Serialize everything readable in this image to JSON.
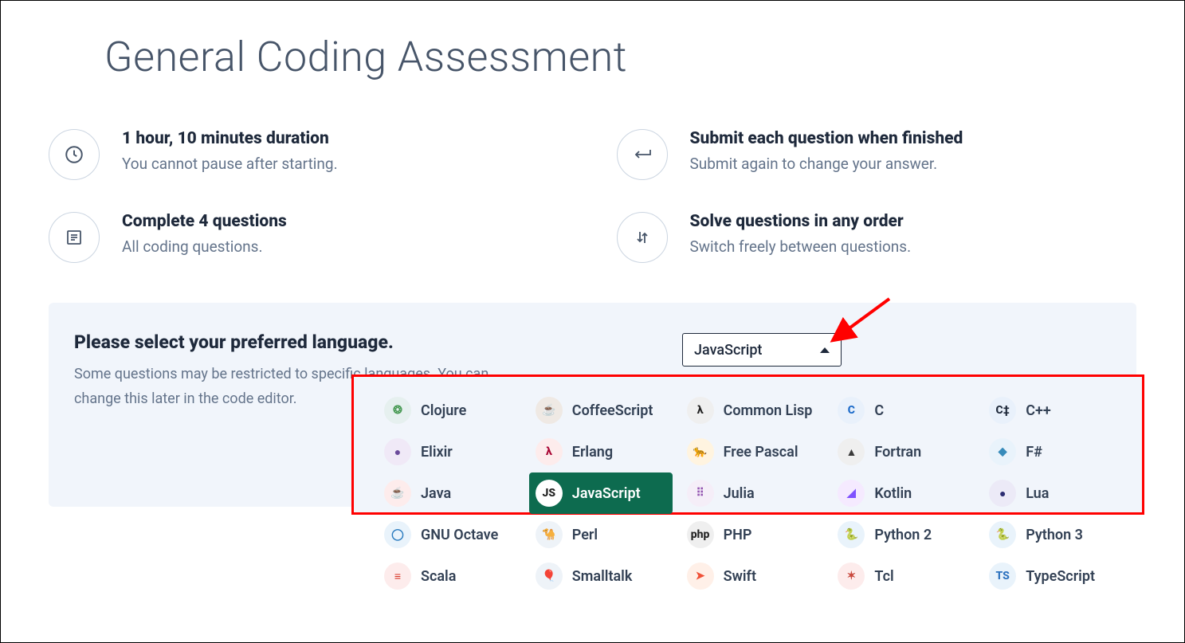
{
  "title": "General Coding Assessment",
  "info": [
    {
      "heading": "1 hour, 10 minutes duration",
      "sub": "You cannot pause after starting.",
      "icon": "clock"
    },
    {
      "heading": "Submit each question when finished",
      "sub": "Submit again to change your answer.",
      "icon": "return"
    },
    {
      "heading": "Complete 4 questions",
      "sub": "All coding questions.",
      "icon": "list"
    },
    {
      "heading": "Solve questions in any order",
      "sub": "Switch freely between questions.",
      "icon": "swap"
    }
  ],
  "lang_section": {
    "heading": "Please select your preferred language.",
    "sub": "Some questions may be restricted to specific languages. You can change this later in the code editor.",
    "selected": "JavaScript"
  },
  "languages": [
    {
      "name": "Clojure",
      "glyph": "❂",
      "icon_bg": "#e6f0ef",
      "icon_fg": "#4a9b56"
    },
    {
      "name": "Elixir",
      "glyph": "●",
      "icon_bg": "#f0e9f7",
      "icon_fg": "#6b4a9b"
    },
    {
      "name": "Java",
      "glyph": "☕",
      "icon_bg": "#fdecec",
      "icon_fg": "#d94a3f"
    },
    {
      "name": "GNU Octave",
      "glyph": "◯",
      "icon_bg": "#e9f3fb",
      "icon_fg": "#2a7bbf"
    },
    {
      "name": "Scala",
      "glyph": "≡",
      "icon_bg": "#fdecec",
      "icon_fg": "#d73222"
    },
    {
      "name": "CoffeeScript",
      "glyph": "☕",
      "icon_bg": "#efe9e4",
      "icon_fg": "#3b2f2a"
    },
    {
      "name": "Erlang",
      "glyph": "λ",
      "icon_bg": "#fdecec",
      "icon_fg": "#a90533"
    },
    {
      "name": "JavaScript",
      "glyph": "JS",
      "icon_bg": "#fff7d6",
      "icon_fg": "#1e1e1e",
      "selected": true
    },
    {
      "name": "Perl",
      "glyph": "🐪",
      "icon_bg": "#eef3f8",
      "icon_fg": "#3a6ea5"
    },
    {
      "name": "Smalltalk",
      "glyph": "🎈",
      "icon_bg": "#eef3f8",
      "icon_fg": "#2a7bbf"
    },
    {
      "name": "Common Lisp",
      "glyph": "λ",
      "icon_bg": "#efefef",
      "icon_fg": "#222222"
    },
    {
      "name": "Free Pascal",
      "glyph": "🐆",
      "icon_bg": "#fff4e0",
      "icon_fg": "#b87a1f"
    },
    {
      "name": "Julia",
      "glyph": "⠿",
      "icon_bg": "#f5eef8",
      "icon_fg": "#9558b2"
    },
    {
      "name": "PHP",
      "glyph": "php",
      "icon_bg": "#efefef",
      "icon_fg": "#222222"
    },
    {
      "name": "Swift",
      "glyph": "➤",
      "icon_bg": "#fff0e8",
      "icon_fg": "#f05138"
    },
    {
      "name": "C",
      "glyph": "C",
      "icon_bg": "#e9f1fb",
      "icon_fg": "#1b6ac9"
    },
    {
      "name": "Fortran",
      "glyph": "▲",
      "icon_bg": "#efefef",
      "icon_fg": "#3a3a3a"
    },
    {
      "name": "Kotlin",
      "glyph": "◢",
      "icon_bg": "#f5eaff",
      "icon_fg": "#7f52ff"
    },
    {
      "name": "Python 2",
      "glyph": "🐍",
      "icon_bg": "#e9f3fb",
      "icon_fg": "#3572a5"
    },
    {
      "name": "Tcl",
      "glyph": "✶",
      "icon_bg": "#fdecec",
      "icon_fg": "#c94a3f"
    },
    {
      "name": "C++",
      "glyph": "C‡",
      "icon_bg": "#e9f1fb",
      "icon_fg": "#1e293b"
    },
    {
      "name": "F#",
      "glyph": "◆",
      "icon_bg": "#e9f3fb",
      "icon_fg": "#378bba"
    },
    {
      "name": "Lua",
      "glyph": "●",
      "icon_bg": "#eceaf7",
      "icon_fg": "#2c2d72"
    },
    {
      "name": "Python 3",
      "glyph": "🐍",
      "icon_bg": "#e9f3fb",
      "icon_fg": "#3572a5"
    },
    {
      "name": "TypeScript",
      "glyph": "TS",
      "icon_bg": "#e9f3fb",
      "icon_fg": "#2f74c0"
    }
  ],
  "annotation": {
    "arrow_color": "#ff0000",
    "box_color": "#ff0000"
  }
}
